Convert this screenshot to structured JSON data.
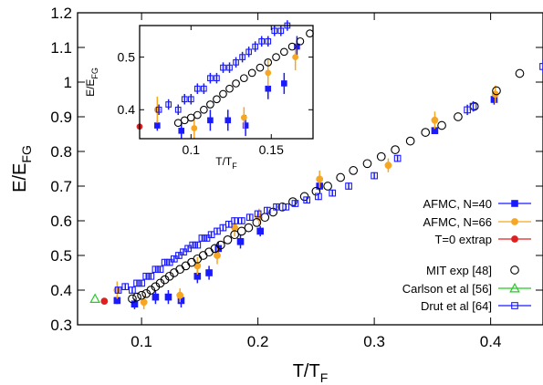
{
  "chart_data": [
    {
      "type": "scatter",
      "title": "",
      "xlabel": "T/T",
      "xlabel_sub": "F",
      "ylabel": "E/E",
      "ylabel_sub": "FG",
      "xlim": [
        0.045,
        0.445
      ],
      "ylim": [
        0.3,
        1.2
      ],
      "x_ticks": [
        "0.1",
        "0.2",
        "0.3",
        "0.4"
      ],
      "x_tick_values": [
        0.1,
        0.2,
        0.3,
        0.4
      ],
      "y_ticks": [
        "0.3",
        "0.4",
        "0.5",
        "0.6",
        "0.7",
        "0.8",
        "0.9",
        "1",
        "1.1",
        "1.2"
      ],
      "y_tick_values": [
        0.3,
        0.4,
        0.5,
        0.6,
        0.7,
        0.8,
        0.9,
        1.0,
        1.1,
        1.2
      ],
      "grid": false,
      "legend_placement": "bottom-right",
      "series": [
        {
          "name": "AFMC, N=40",
          "color": "#1a1aff",
          "marker": "square-filled",
          "points": [
            {
              "x": 0.079,
              "y": 0.37,
              "err": 0.01
            },
            {
              "x": 0.094,
              "y": 0.36,
              "err": 0.015
            },
            {
              "x": 0.112,
              "y": 0.38,
              "err": 0.02
            },
            {
              "x": 0.123,
              "y": 0.38,
              "err": 0.02
            },
            {
              "x": 0.134,
              "y": 0.37,
              "err": 0.02
            },
            {
              "x": 0.148,
              "y": 0.44,
              "err": 0.02
            },
            {
              "x": 0.158,
              "y": 0.45,
              "err": 0.02
            },
            {
              "x": 0.166,
              "y": 0.52,
              "err": 0.02
            },
            {
              "x": 0.185,
              "y": 0.54,
              "err": 0.02
            },
            {
              "x": 0.202,
              "y": 0.57,
              "err": 0.015
            },
            {
              "x": 0.253,
              "y": 0.7,
              "err": 0.015
            },
            {
              "x": 0.352,
              "y": 0.86,
              "err": 0.01
            },
            {
              "x": 0.403,
              "y": 0.95,
              "err": 0.015
            }
          ]
        },
        {
          "name": "AFMC, N=66",
          "color": "#f5a623",
          "marker": "circle-filled",
          "points": [
            {
              "x": 0.079,
              "y": 0.4,
              "err": 0.025
            },
            {
              "x": 0.102,
              "y": 0.365,
              "err": 0.02
            },
            {
              "x": 0.133,
              "y": 0.385,
              "err": 0.02
            },
            {
              "x": 0.148,
              "y": 0.47,
              "err": 0.025
            },
            {
              "x": 0.165,
              "y": 0.5,
              "err": 0.025
            },
            {
              "x": 0.18,
              "y": 0.58,
              "err": 0.025
            },
            {
              "x": 0.201,
              "y": 0.61,
              "err": 0.025
            },
            {
              "x": 0.253,
              "y": 0.72,
              "err": 0.025
            },
            {
              "x": 0.312,
              "y": 0.76,
              "err": 0.02
            },
            {
              "x": 0.352,
              "y": 0.89,
              "err": 0.025
            },
            {
              "x": 0.404,
              "y": 0.965,
              "err": 0.025
            }
          ]
        },
        {
          "name": "T=0 extrap",
          "color": "#e02020",
          "marker": "circle-filled",
          "points": [
            {
              "x": 0.068,
              "y": 0.368,
              "err": 0
            }
          ]
        },
        {
          "name": "MIT exp [48]",
          "color": "#000000",
          "marker": "circle-open",
          "points": [
            {
              "x": 0.092,
              "y": 0.375
            },
            {
              "x": 0.096,
              "y": 0.38
            },
            {
              "x": 0.1,
              "y": 0.385
            },
            {
              "x": 0.104,
              "y": 0.39
            },
            {
              "x": 0.108,
              "y": 0.4
            },
            {
              "x": 0.112,
              "y": 0.41
            },
            {
              "x": 0.116,
              "y": 0.42
            },
            {
              "x": 0.12,
              "y": 0.43
            },
            {
              "x": 0.124,
              "y": 0.44
            },
            {
              "x": 0.128,
              "y": 0.45
            },
            {
              "x": 0.133,
              "y": 0.46
            },
            {
              "x": 0.138,
              "y": 0.47
            },
            {
              "x": 0.143,
              "y": 0.48
            },
            {
              "x": 0.148,
              "y": 0.49
            },
            {
              "x": 0.153,
              "y": 0.5
            },
            {
              "x": 0.158,
              "y": 0.51
            },
            {
              "x": 0.163,
              "y": 0.52
            },
            {
              "x": 0.168,
              "y": 0.53
            },
            {
              "x": 0.174,
              "y": 0.545
            },
            {
              "x": 0.18,
              "y": 0.56
            },
            {
              "x": 0.186,
              "y": 0.57
            },
            {
              "x": 0.192,
              "y": 0.58
            },
            {
              "x": 0.199,
              "y": 0.595
            },
            {
              "x": 0.206,
              "y": 0.61
            },
            {
              "x": 0.213,
              "y": 0.625
            },
            {
              "x": 0.221,
              "y": 0.64
            },
            {
              "x": 0.23,
              "y": 0.655
            },
            {
              "x": 0.24,
              "y": 0.67
            },
            {
              "x": 0.25,
              "y": 0.685
            },
            {
              "x": 0.26,
              "y": 0.7
            },
            {
              "x": 0.271,
              "y": 0.725
            },
            {
              "x": 0.282,
              "y": 0.745
            },
            {
              "x": 0.294,
              "y": 0.765
            },
            {
              "x": 0.306,
              "y": 0.785
            },
            {
              "x": 0.318,
              "y": 0.805
            },
            {
              "x": 0.331,
              "y": 0.83
            },
            {
              "x": 0.344,
              "y": 0.855
            },
            {
              "x": 0.358,
              "y": 0.875
            },
            {
              "x": 0.372,
              "y": 0.9
            },
            {
              "x": 0.386,
              "y": 0.93
            },
            {
              "x": 0.405,
              "y": 0.975
            },
            {
              "x": 0.425,
              "y": 1.025
            }
          ]
        },
        {
          "name": "Carlson et al [56]",
          "color": "#22cc22",
          "marker": "triangle-open",
          "points": [
            {
              "x": 0.06,
              "y": 0.375
            }
          ]
        },
        {
          "name": "Drut et al [64]",
          "color": "#1a1aff",
          "marker": "square-open",
          "points": [
            {
              "x": 0.08,
              "y": 0.4,
              "err": 0.01
            },
            {
              "x": 0.086,
              "y": 0.41,
              "err": 0.01
            },
            {
              "x": 0.092,
              "y": 0.4,
              "err": 0.01
            },
            {
              "x": 0.096,
              "y": 0.42,
              "err": 0.01
            },
            {
              "x": 0.1,
              "y": 0.42,
              "err": 0.01
            },
            {
              "x": 0.104,
              "y": 0.44,
              "err": 0.01
            },
            {
              "x": 0.108,
              "y": 0.44,
              "err": 0.01
            },
            {
              "x": 0.112,
              "y": 0.46,
              "err": 0.01
            },
            {
              "x": 0.116,
              "y": 0.46,
              "err": 0.01
            },
            {
              "x": 0.12,
              "y": 0.48,
              "err": 0.01
            },
            {
              "x": 0.124,
              "y": 0.48,
              "err": 0.01
            },
            {
              "x": 0.128,
              "y": 0.49,
              "err": 0.01
            },
            {
              "x": 0.132,
              "y": 0.5,
              "err": 0.01
            },
            {
              "x": 0.136,
              "y": 0.51,
              "err": 0.01
            },
            {
              "x": 0.14,
              "y": 0.52,
              "err": 0.01
            },
            {
              "x": 0.144,
              "y": 0.53,
              "err": 0.01
            },
            {
              "x": 0.148,
              "y": 0.53,
              "err": 0.01
            },
            {
              "x": 0.152,
              "y": 0.55,
              "err": 0.01
            },
            {
              "x": 0.156,
              "y": 0.55,
              "err": 0.01
            },
            {
              "x": 0.16,
              "y": 0.56,
              "err": 0.01
            },
            {
              "x": 0.165,
              "y": 0.57,
              "err": 0.01
            },
            {
              "x": 0.17,
              "y": 0.58,
              "err": 0.01
            },
            {
              "x": 0.175,
              "y": 0.59,
              "err": 0.01
            },
            {
              "x": 0.18,
              "y": 0.6,
              "err": 0.01
            },
            {
              "x": 0.186,
              "y": 0.6,
              "err": 0.01
            },
            {
              "x": 0.193,
              "y": 0.61,
              "err": 0.01
            },
            {
              "x": 0.2,
              "y": 0.62,
              "err": 0.01
            },
            {
              "x": 0.208,
              "y": 0.63,
              "err": 0.01
            },
            {
              "x": 0.216,
              "y": 0.64,
              "err": 0.01
            },
            {
              "x": 0.224,
              "y": 0.64,
              "err": 0.01
            },
            {
              "x": 0.232,
              "y": 0.65,
              "err": 0.01
            },
            {
              "x": 0.242,
              "y": 0.66,
              "err": 0.01
            },
            {
              "x": 0.252,
              "y": 0.67,
              "err": 0.01
            },
            {
              "x": 0.264,
              "y": 0.68,
              "err": 0.01
            },
            {
              "x": 0.278,
              "y": 0.7,
              "err": 0.01
            },
            {
              "x": 0.3,
              "y": 0.73,
              "err": 0.01
            },
            {
              "x": 0.32,
              "y": 0.78,
              "err": 0.01
            },
            {
              "x": 0.38,
              "y": 0.92,
              "err": 0.015
            },
            {
              "x": 0.385,
              "y": 0.93,
              "err": 0.015
            },
            {
              "x": 0.445,
              "y": 1.045,
              "err": 0.02
            }
          ]
        }
      ]
    },
    {
      "type": "scatter",
      "title": "",
      "inset": true,
      "xlabel": "T/T",
      "xlabel_sub": "F",
      "ylabel": "E/E",
      "ylabel_sub": "FG",
      "xlim": [
        0.068,
        0.176
      ],
      "ylim": [
        0.345,
        0.56
      ],
      "x_ticks": [
        "0.1",
        "0.15"
      ],
      "x_tick_values": [
        0.1,
        0.15
      ],
      "y_ticks": [
        "0.4",
        "0.5"
      ],
      "y_tick_values": [
        0.4,
        0.5
      ],
      "grid": false,
      "note": "zoom of the main panel (T/T_F from about 0.07 to 0.17), same series"
    }
  ]
}
